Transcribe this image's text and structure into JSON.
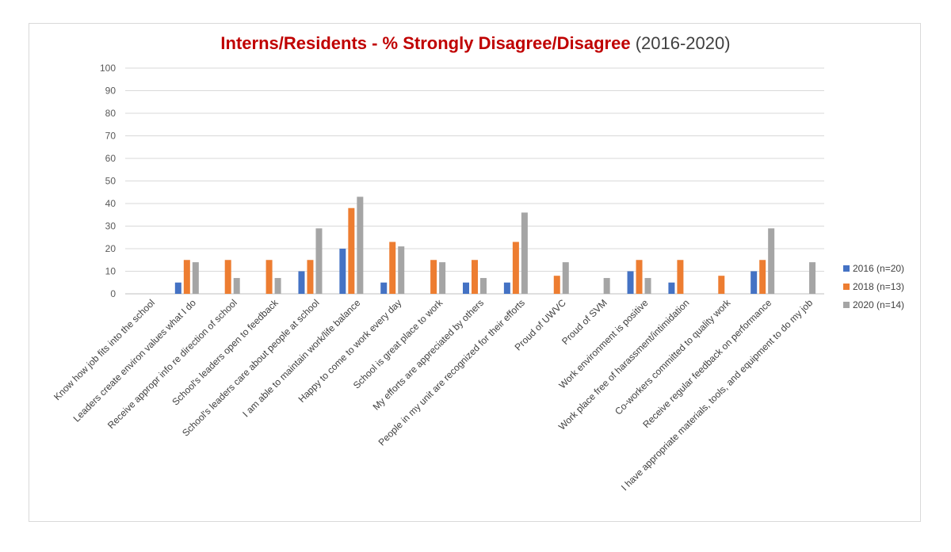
{
  "chart_data": {
    "type": "bar",
    "title": "Interns/Residents - % Strongly Disagree/Disagree",
    "subtitle": "(2016-2020)",
    "xlabel": "",
    "ylabel": "",
    "ylim": [
      0,
      100
    ],
    "yticks": [
      0,
      10,
      20,
      30,
      40,
      50,
      60,
      70,
      80,
      90,
      100
    ],
    "grid": true,
    "legend_position": "right",
    "categories": [
      "Know how job fits into the school",
      "Leaders create environ values what I do",
      "Receive appropr info re direction of school",
      "School's leaders open to feedback",
      "School's leaders care about people at school",
      "I am able to maintain work/life balance",
      "Happy to come to work every day",
      "School is great place to work",
      "My efforts are appreciated by others",
      "People in my unit are recognized for their efforts",
      "Proud of UWVC",
      "Proud of SVM",
      "Work environment is positive",
      "Work place free of harassment/intimidation",
      "Co-workers committed to quality work",
      "Receive regular feedback on performance",
      "I have appropriate materials, tools, and equipment to do my job"
    ],
    "series": [
      {
        "name": "2016  (n=20)",
        "color": "#4472c4",
        "values": [
          0,
          5,
          0,
          0,
          10,
          20,
          5,
          0,
          5,
          5,
          0,
          0,
          10,
          5,
          0,
          10,
          0
        ]
      },
      {
        "name": "2018  (n=13)",
        "color": "#ed7d31",
        "values": [
          0,
          15,
          15,
          15,
          15,
          38,
          23,
          15,
          15,
          23,
          8,
          0,
          15,
          15,
          8,
          15,
          0
        ]
      },
      {
        "name": "2020  (n=14)",
        "color": "#a5a5a5",
        "values": [
          0,
          14,
          7,
          7,
          29,
          43,
          21,
          14,
          7,
          36,
          14,
          7,
          7,
          0,
          0,
          29,
          14
        ]
      }
    ]
  }
}
